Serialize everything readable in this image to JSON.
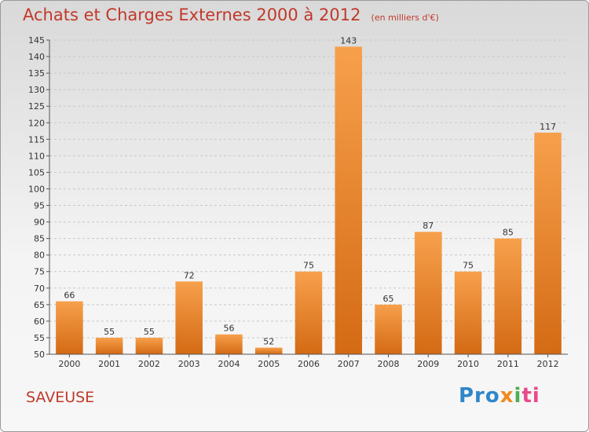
{
  "header": {
    "title": "Achats et Charges Externes 2000 à 2012",
    "unit": "(en milliers d'€)"
  },
  "footer": {
    "commune": "SAVEUSE",
    "logo": "Proxiti"
  },
  "colors": {
    "bar_light": "#f7a04c",
    "bar_dark": "#d46a14",
    "title": "#c0392b"
  },
  "chart_data": {
    "type": "bar",
    "title": "Achats et Charges Externes 2000 à 2012",
    "subtitle": "(en milliers d'€)",
    "categories": [
      "2000",
      "2001",
      "2002",
      "2003",
      "2004",
      "2005",
      "2006",
      "2007",
      "2008",
      "2009",
      "2010",
      "2011",
      "2012"
    ],
    "values": [
      66,
      55,
      55,
      72,
      56,
      52,
      75,
      143,
      65,
      87,
      75,
      85,
      117
    ],
    "ylim": [
      50,
      145
    ],
    "ytick_step": 5,
    "grid": "horizontal dashed",
    "legend": "none"
  }
}
